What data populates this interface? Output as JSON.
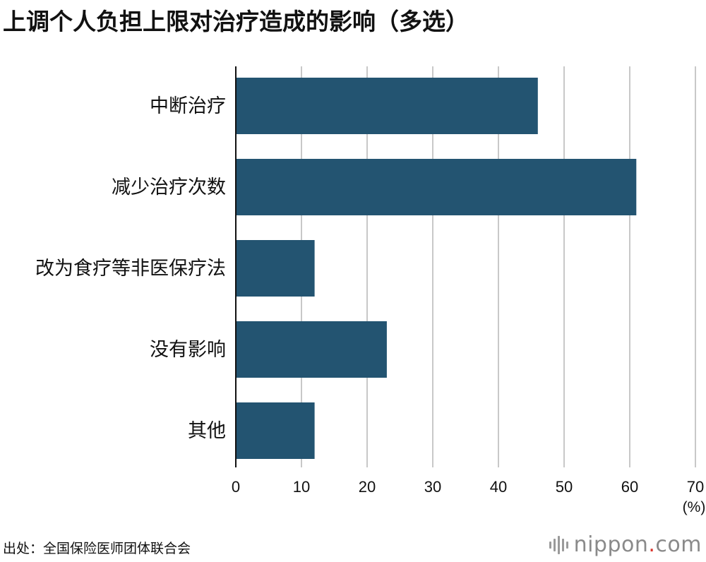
{
  "chart_data": {
    "type": "bar",
    "orientation": "horizontal",
    "title": "上调个人负担上限对治疗造成的影响（多选）",
    "categories": [
      "中断治疗",
      "减少治疗次数",
      "改为食疗等非医保疗法",
      "没有影响",
      "其他"
    ],
    "values": [
      46,
      61,
      12,
      23,
      12
    ],
    "xlim": [
      0,
      70
    ],
    "xticks": [
      0,
      10,
      20,
      30,
      40,
      50,
      60,
      70
    ],
    "unit": "(%)",
    "grid": true,
    "bar_color": "#235471",
    "grid_color": "#c8c8c8"
  },
  "footer": {
    "source": "出处：全国保险医师团体联合会",
    "logo_main": "nippon",
    "logo_dot": ".",
    "logo_tld": "com"
  },
  "colors": {
    "logo_text": "#8a8a8a",
    "logo_dot": "#d9342b"
  },
  "icons": {
    "logo_mark": "sound-wave-icon"
  }
}
